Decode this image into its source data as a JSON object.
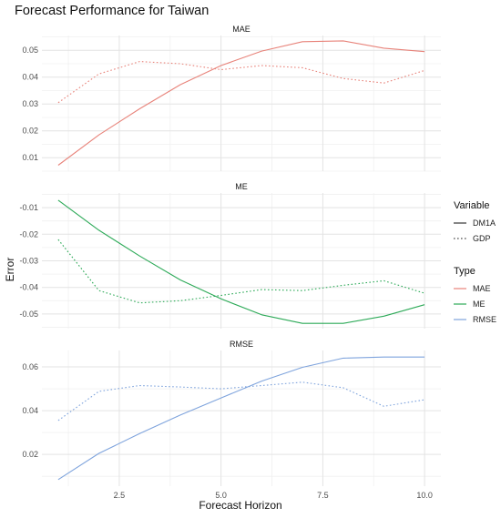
{
  "chart_data": {
    "type": "line",
    "title": "Forecast Performance for Taiwan",
    "xlabel": "Forecast Horizon",
    "ylabel": "Error",
    "x": [
      1,
      2,
      3,
      4,
      5,
      6,
      7,
      8,
      9,
      10
    ],
    "xlim": [
      0.6,
      10.4
    ],
    "x_ticks": [
      2.5,
      5.0,
      7.5,
      10.0
    ],
    "x_tick_labels": [
      "2.5",
      "5.0",
      "7.5",
      "10.0"
    ],
    "grid": true,
    "legend_position": "right",
    "legend": {
      "variable_title": "Variable",
      "variable_entries": [
        {
          "label": "DM1A",
          "linestyle": "solid"
        },
        {
          "label": "GDP",
          "linestyle": "dotted"
        }
      ],
      "type_title": "Type",
      "type_entries": [
        {
          "label": "MAE",
          "color": "#E8837A"
        },
        {
          "label": "ME",
          "color": "#2DAA58"
        },
        {
          "label": "RMSE",
          "color": "#7FA4DD"
        }
      ]
    },
    "panels": [
      {
        "title": "MAE",
        "color": "#E8837A",
        "ylim": [
          0.005,
          0.0555
        ],
        "y_ticks": [
          0.01,
          0.02,
          0.03,
          0.04,
          0.05
        ],
        "y_tick_labels": [
          "0.01",
          "0.02",
          "0.03",
          "0.04",
          "0.05"
        ],
        "series": [
          {
            "name": "DM1A",
            "linestyle": "solid",
            "values": [
              0.0072,
              0.0185,
              0.0282,
              0.0372,
              0.0443,
              0.0497,
              0.0532,
              0.0535,
              0.0508,
              0.0495
            ]
          },
          {
            "name": "GDP",
            "linestyle": "dotted",
            "values": [
              0.0305,
              0.0412,
              0.0458,
              0.045,
              0.0428,
              0.0443,
              0.0435,
              0.0395,
              0.0378,
              0.0425
            ]
          }
        ]
      },
      {
        "title": "ME",
        "color": "#2DAA58",
        "ylim": [
          -0.0555,
          -0.0045
        ],
        "y_ticks": [
          -0.01,
          -0.02,
          -0.03,
          -0.04,
          -0.05
        ],
        "y_tick_labels": [
          "-0.01",
          "-0.02",
          "-0.03",
          "-0.04",
          "-0.05"
        ],
        "series": [
          {
            "name": "DM1A",
            "linestyle": "solid",
            "values": [
              -0.0072,
              -0.0185,
              -0.0282,
              -0.0372,
              -0.0443,
              -0.0503,
              -0.0535,
              -0.0535,
              -0.0508,
              -0.0465
            ]
          },
          {
            "name": "GDP",
            "linestyle": "dotted",
            "values": [
              -0.022,
              -0.0412,
              -0.0458,
              -0.045,
              -0.043,
              -0.0408,
              -0.0412,
              -0.0392,
              -0.0375,
              -0.0422
            ]
          }
        ]
      },
      {
        "title": "RMSE",
        "color": "#7FA4DD",
        "ylim": [
          0.0055,
          0.0675
        ],
        "y_ticks": [
          0.02,
          0.04,
          0.06
        ],
        "y_tick_labels": [
          "0.02",
          "0.04",
          "0.06"
        ],
        "series": [
          {
            "name": "DM1A",
            "linestyle": "solid",
            "values": [
              0.0085,
              0.0205,
              0.0295,
              0.038,
              0.0458,
              0.0535,
              0.0598,
              0.064,
              0.0645,
              0.0645
            ]
          },
          {
            "name": "GDP",
            "linestyle": "dotted",
            "values": [
              0.0355,
              0.0488,
              0.0515,
              0.0508,
              0.05,
              0.0515,
              0.053,
              0.0505,
              0.042,
              0.045
            ]
          }
        ]
      }
    ]
  }
}
